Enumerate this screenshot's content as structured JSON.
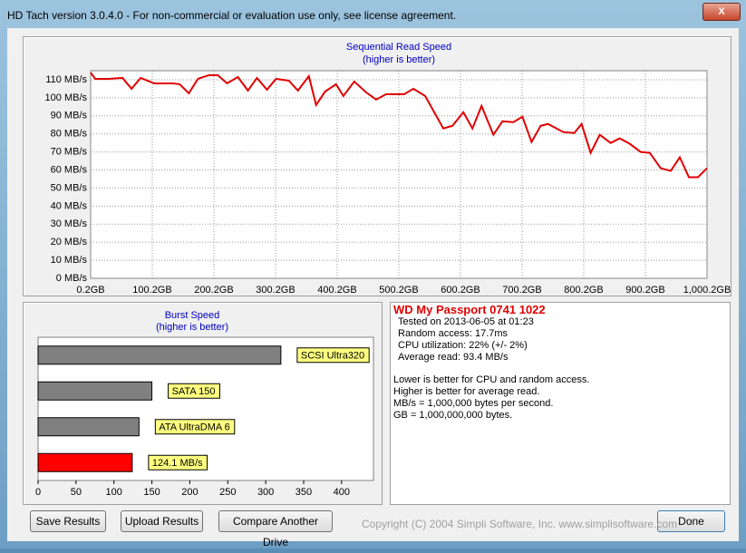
{
  "window": {
    "title": "HD Tach version 3.0.4.0  - For non-commercial or evaluation use only, see license agreement."
  },
  "chart_data": [
    {
      "type": "line",
      "title": "Sequential Read Speed",
      "subtitle": "(higher is better)",
      "color": "#e00000",
      "grid": true,
      "x": [
        0.2,
        7.6,
        29.7,
        51.8,
        66.6,
        81.3,
        103.4,
        133,
        144.7,
        159.5,
        174.2,
        191.9,
        206.7,
        221.4,
        239.1,
        255.4,
        270,
        286.3,
        301.1,
        321.7,
        336.5,
        354.2,
        366,
        380.7,
        398.4,
        410.2,
        427.9,
        447.1,
        463.4,
        479.6,
        509.1,
        523.8,
        542.9,
        572.4,
        587.2,
        604.9,
        619.6,
        634.4,
        653.6,
        668.3,
        686,
        700.8,
        715.5,
        730.3,
        742.1,
        767.2,
        784.9,
        796.7,
        811.4,
        826.2,
        843.9,
        858.6,
        874.9,
        892.5,
        907.3,
        925,
        941.3,
        956,
        970.8,
        985.5,
        1000.2
      ],
      "values": [
        114,
        110.5,
        110.5,
        111,
        105,
        111,
        108,
        108,
        107.5,
        102.5,
        110.5,
        112.5,
        112.5,
        108,
        111.5,
        104,
        111,
        104.5,
        110.5,
        109.5,
        104,
        112,
        96,
        103.5,
        107.5,
        101,
        109,
        103,
        99,
        102,
        102,
        105,
        101,
        83,
        84.5,
        92,
        83,
        95.5,
        79.5,
        87,
        86.5,
        89.5,
        75.5,
        84.5,
        85.5,
        81,
        80.5,
        85.5,
        69.5,
        79.5,
        75,
        77.5,
        74.5,
        70,
        69.5,
        61,
        59.5,
        67,
        56,
        56,
        61
      ],
      "xlim": [
        0.2,
        1000.2
      ],
      "xticks": [
        {
          "value": 0.2,
          "label": "0.2GB"
        },
        {
          "value": 100.2,
          "label": "100.2GB"
        },
        {
          "value": 200.2,
          "label": "200.2GB"
        },
        {
          "value": 300.2,
          "label": "300.2GB"
        },
        {
          "value": 400.2,
          "label": "400.2GB"
        },
        {
          "value": 500.2,
          "label": "500.2GB"
        },
        {
          "value": 600.2,
          "label": "600.2GB"
        },
        {
          "value": 700.2,
          "label": "700.2GB"
        },
        {
          "value": 800.2,
          "label": "800.2GB"
        },
        {
          "value": 900.2,
          "label": "900.2GB"
        },
        {
          "value": 1000.2,
          "label": "1,000.2GB"
        }
      ],
      "ylim": [
        0,
        115
      ],
      "yticks": [
        {
          "value": 0,
          "label": "0 MB/s"
        },
        {
          "value": 10,
          "label": "10 MB/s"
        },
        {
          "value": 20,
          "label": "20 MB/s"
        },
        {
          "value": 30,
          "label": "30 MB/s"
        },
        {
          "value": 40,
          "label": "40 MB/s"
        },
        {
          "value": 50,
          "label": "50 MB/s"
        },
        {
          "value": 60,
          "label": "60 MB/s"
        },
        {
          "value": 70,
          "label": "70 MB/s"
        },
        {
          "value": 80,
          "label": "80 MB/s"
        },
        {
          "value": 90,
          "label": "90 MB/s"
        },
        {
          "value": 100,
          "label": "100 MB/s"
        },
        {
          "value": 110,
          "label": "110 MB/s"
        }
      ]
    },
    {
      "type": "bar",
      "orientation": "horizontal",
      "title": "Burst Speed",
      "subtitle": "(higher is better)",
      "grid": false,
      "categories": [
        "SCSI Ultra320",
        "SATA 150",
        "ATA UltraDMA 6",
        null
      ],
      "values": [
        320,
        150,
        133,
        124.1
      ],
      "value_labels": [
        null,
        null,
        null,
        "124.1 MB/s"
      ],
      "colors": [
        "#808080",
        "#808080",
        "#808080",
        "#ff0000"
      ],
      "xlim": [
        0,
        442
      ],
      "xticks": [
        0,
        50,
        100,
        150,
        200,
        250,
        300,
        350,
        400
      ]
    }
  ],
  "info": {
    "drive": "WD My Passport 0741 1022",
    "stats": [
      "Tested on 2013-06-05 at 01:23",
      "Random access: 17.7ms",
      "CPU utilization: 22% (+/- 2%)",
      "Average read: 93.4 MB/s"
    ],
    "notes": [
      "Lower is better for CPU and random access.",
      "Higher is better for average read.",
      "MB/s = 1,000,000 bytes per second.",
      "GB = 1,000,000,000 bytes."
    ]
  },
  "buttons": [
    "Save Results",
    "Upload Results",
    "Compare Another Drive",
    "Done"
  ],
  "copyright": "Copyright (C) 2004 Simpli Software, Inc. www.simplisoftware.com"
}
